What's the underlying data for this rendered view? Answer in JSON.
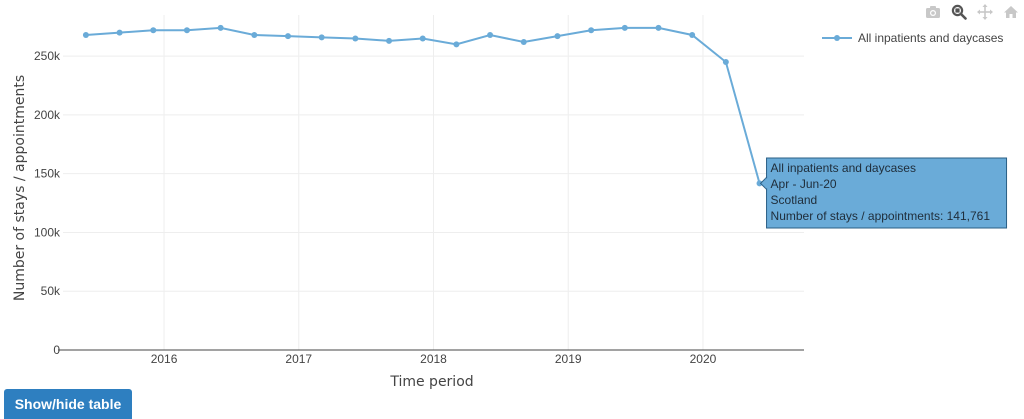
{
  "toolbar": {
    "icons": [
      "camera-icon",
      "zoom-icon",
      "pan-icon",
      "home-icon"
    ]
  },
  "show_table_button": "Show/hide table",
  "chart_data": {
    "type": "line",
    "xlabel": "Time period",
    "ylabel": "Number of stays / appointments",
    "ylim": [
      0,
      285000
    ],
    "xlim": [
      2015.25,
      2020.75
    ],
    "x_ticks": [
      2016,
      2017,
      2018,
      2019,
      2020
    ],
    "x_tick_labels": [
      "2016",
      "2017",
      "2018",
      "2019",
      "2020"
    ],
    "y_ticks": [
      0,
      50000,
      100000,
      150000,
      200000,
      250000
    ],
    "y_tick_labels": [
      "0",
      "50k",
      "100k",
      "150k",
      "200k",
      "250k"
    ],
    "grid": true,
    "legend_position": "top-right",
    "series": [
      {
        "name": "All inpatients and daycases",
        "color": "#6aabd8",
        "x": [
          2015.42,
          2015.67,
          2015.92,
          2016.17,
          2016.42,
          2016.67,
          2016.92,
          2017.17,
          2017.42,
          2017.67,
          2017.92,
          2018.17,
          2018.42,
          2018.67,
          2018.92,
          2019.17,
          2019.42,
          2019.67,
          2019.92,
          2020.17,
          2020.42
        ],
        "values": [
          268000,
          270000,
          272000,
          272000,
          274000,
          268000,
          267000,
          266000,
          265000,
          263000,
          265000,
          260000,
          268000,
          262000,
          267000,
          272000,
          274000,
          274000,
          268000,
          245000,
          141761
        ]
      }
    ]
  },
  "tooltip": {
    "lines": [
      "All inpatients and daycases",
      "Apr - Jun-20",
      "Scotland",
      "Number of stays / appointments: 141,761"
    ],
    "point_index": 20,
    "background": "#6aabd8"
  }
}
